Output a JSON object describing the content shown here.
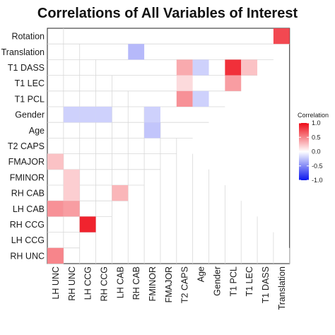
{
  "chart_data": {
    "type": "heatmap",
    "title": "Correlations of All Variables of Interest",
    "xlabel": "",
    "ylabel": "",
    "x_categories": [
      "LH UNC",
      "RH UNC",
      "LH CCG",
      "RH CCG",
      "LH CAB",
      "RH CAB",
      "FMINOR",
      "FMAJOR",
      "T2 CAPS",
      "Age",
      "Gender",
      "T1 PCL",
      "T1 LEC",
      "T1 DASS",
      "Translation"
    ],
    "y_categories": [
      "Rotation",
      "Translation",
      "T1 DASS",
      "T1 LEC",
      "T1 PCL",
      "Gender",
      "Age",
      "T2 CAPS",
      "FMAJOR",
      "FMINOR",
      "RH CAB",
      "LH CAB",
      "RH CCG",
      "LH CCG",
      "RH UNC"
    ],
    "cells": [
      {
        "x": "Translation",
        "y": "Rotation",
        "value": 0.75
      },
      {
        "x": "RH CAB",
        "y": "Translation",
        "value": -0.3
      },
      {
        "x": "T2 CAPS",
        "y": "T1 DASS",
        "value": 0.35
      },
      {
        "x": "Age",
        "y": "T1 DASS",
        "value": -0.2
      },
      {
        "x": "T1 PCL",
        "y": "T1 DASS",
        "value": 0.85
      },
      {
        "x": "T1 LEC",
        "y": "T1 DASS",
        "value": 0.25
      },
      {
        "x": "T2 CAPS",
        "y": "T1 LEC",
        "value": 0.15
      },
      {
        "x": "T1 PCL",
        "y": "T1 LEC",
        "value": 0.4
      },
      {
        "x": "T2 CAPS",
        "y": "T1 PCL",
        "value": 0.45
      },
      {
        "x": "Age",
        "y": "T1 PCL",
        "value": -0.2
      },
      {
        "x": "RH UNC",
        "y": "Gender",
        "value": -0.2
      },
      {
        "x": "LH CCG",
        "y": "Gender",
        "value": -0.2
      },
      {
        "x": "RH CCG",
        "y": "Gender",
        "value": -0.2
      },
      {
        "x": "FMINOR",
        "y": "Gender",
        "value": -0.2
      },
      {
        "x": "FMINOR",
        "y": "Age",
        "value": -0.25
      },
      {
        "x": "LH UNC",
        "y": "FMAJOR",
        "value": 0.25
      },
      {
        "x": "RH UNC",
        "y": "FMINOR",
        "value": 0.2
      },
      {
        "x": "RH UNC",
        "y": "RH CAB",
        "value": 0.2
      },
      {
        "x": "LH CAB",
        "y": "RH CAB",
        "value": 0.3
      },
      {
        "x": "LH UNC",
        "y": "LH CAB",
        "value": 0.45
      },
      {
        "x": "RH UNC",
        "y": "LH CAB",
        "value": 0.4
      },
      {
        "x": "LH CCG",
        "y": "RH CCG",
        "value": 0.9
      },
      {
        "x": "LH UNC",
        "y": "RH UNC",
        "value": 0.5
      }
    ],
    "legend": {
      "title": "Correlation",
      "ticks": [
        "1.0",
        "0.5",
        "0.0",
        "-0.5",
        "-1.0"
      ],
      "tick_values": [
        1.0,
        0.5,
        0.0,
        -0.5,
        -1.0
      ],
      "range": [
        -1.0,
        1.0
      ],
      "colors": {
        "low": "#0b17ee",
        "mid": "#ffffff",
        "high": "#ee0b17"
      },
      "position": "right"
    }
  }
}
